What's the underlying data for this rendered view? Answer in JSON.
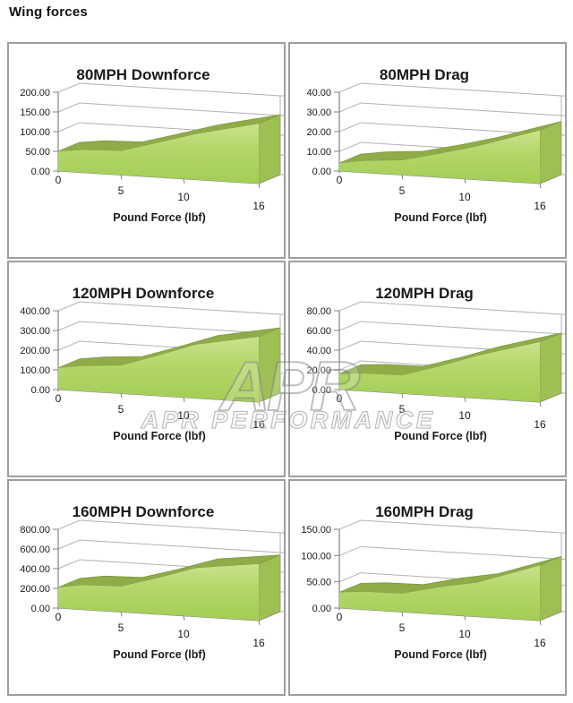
{
  "page": {
    "title": "Wing forces"
  },
  "watermark": {
    "logo": "APR",
    "text": "APR PERFORMANCE"
  },
  "axis": {
    "x_ticks": [
      "0",
      "5",
      "10",
      "16"
    ]
  },
  "colors": {
    "area_front_top": "#c9e28c",
    "area_front_mid": "#b2d668",
    "area_front_bottom": "#a5cd55",
    "area_top_band": "#8fac49",
    "area_band_edge": "#7d9840",
    "area_side": "#9dbf54",
    "grid": "#b3b3b3",
    "axis": "#828282",
    "panel_border": "#9e9e9e",
    "text": "#1a1a1a",
    "watermark": "#8c8c8c"
  },
  "chart_data": [
    {
      "type": "area",
      "title": "80MPH Downforce",
      "xlabel": "Pound Force (lbf)",
      "xlim": [
        0,
        16
      ],
      "ylim": [
        0,
        200
      ],
      "yticks": [
        0,
        50,
        100,
        150,
        200
      ],
      "ytick_labels": [
        "0.00",
        "50.00",
        "100.00",
        "150.00",
        "200.00"
      ],
      "x": [
        0,
        2,
        5,
        8,
        11,
        16
      ],
      "values": [
        50,
        58,
        61,
        88,
        116,
        152
      ]
    },
    {
      "type": "area",
      "title": "80MPH Drag",
      "xlabel": "Pound Force (lbf)",
      "xlim": [
        0,
        16
      ],
      "ylim": [
        0,
        40
      ],
      "yticks": [
        0,
        10,
        20,
        30,
        40
      ],
      "ytick_labels": [
        "0.00",
        "10.00",
        "20.00",
        "30.00",
        "40.00"
      ],
      "x": [
        0,
        2,
        5,
        8,
        11,
        16
      ],
      "values": [
        4,
        6,
        7.5,
        12,
        17,
        27
      ]
    },
    {
      "type": "area",
      "title": "120MPH Downforce",
      "xlabel": "Pound Force (lbf)",
      "xlim": [
        0,
        16
      ],
      "ylim": [
        0,
        400
      ],
      "yticks": [
        0,
        100,
        200,
        300,
        400
      ],
      "ytick_labels": [
        "0.00",
        "100.00",
        "200.00",
        "300.00",
        "400.00"
      ],
      "x": [
        0,
        2,
        5,
        8,
        11,
        16
      ],
      "values": [
        110,
        128,
        142,
        205,
        272,
        332
      ]
    },
    {
      "type": "area",
      "title": "120MPH Drag",
      "xlabel": "Pound Force (lbf)",
      "xlim": [
        0,
        16
      ],
      "ylim": [
        0,
        80
      ],
      "yticks": [
        0,
        20,
        40,
        60,
        80
      ],
      "ytick_labels": [
        "0.00",
        "20.00",
        "40.00",
        "60.00",
        "80.00"
      ],
      "x": [
        0,
        2,
        5,
        8,
        11,
        16
      ],
      "values": [
        16,
        18,
        18.5,
        30,
        43,
        61
      ]
    },
    {
      "type": "area",
      "title": "160MPH Downforce",
      "xlabel": "Pound Force (lbf)",
      "xlim": [
        0,
        16
      ],
      "ylim": [
        0,
        800
      ],
      "yticks": [
        0,
        200,
        400,
        600,
        800
      ],
      "ytick_labels": [
        "0.00",
        "200.00",
        "400.00",
        "600.00",
        "800.00"
      ],
      "x": [
        0,
        2,
        5,
        8,
        11,
        16
      ],
      "values": [
        210,
        250,
        260,
        370,
        495,
        575
      ]
    },
    {
      "type": "area",
      "title": "160MPH Drag",
      "xlabel": "Pound Force (lbf)",
      "xlim": [
        0,
        16
      ],
      "ylim": [
        0,
        150
      ],
      "yticks": [
        0,
        50,
        100,
        150
      ],
      "ytick_labels": [
        "0.00",
        "50.00",
        "100.00",
        "150.00"
      ],
      "x": [
        0,
        2,
        5,
        8,
        11,
        16
      ],
      "values": [
        30,
        34,
        35,
        52,
        65,
        105
      ]
    }
  ]
}
